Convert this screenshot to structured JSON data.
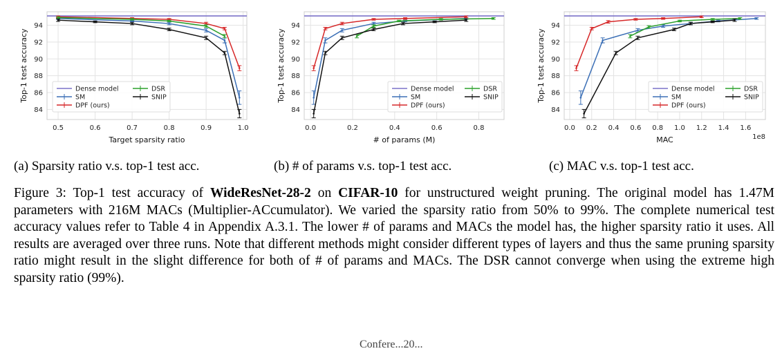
{
  "series_colors": {
    "Dense model": "#7b72c9",
    "SM": "#3b6fb6",
    "DPF (ours)": "#d62728",
    "DSR": "#2ca02c",
    "SNIP": "#111111"
  },
  "legend": [
    "Dense model",
    "SM",
    "DPF (ours)",
    "DSR",
    "SNIP"
  ],
  "chart_data": [
    {
      "type": "line",
      "xlabel": "Target sparsity ratio",
      "ylabel": "Top-1 test accuracy",
      "xlim": [
        0.47,
        1.01
      ],
      "ylim": [
        82.8,
        95.6
      ],
      "xticks": [
        0.5,
        0.6,
        0.7,
        0.8,
        0.9,
        1.0
      ],
      "xticklabels": [
        "0.5",
        "0.6",
        "0.7",
        "0.8",
        "0.9",
        "1.0"
      ],
      "yticks": [
        84,
        86,
        88,
        90,
        92,
        94
      ],
      "grid": true,
      "legend_position": "lower-left",
      "series": [
        {
          "name": "Dense model",
          "x": [
            0.47,
            1.01
          ],
          "y": [
            95.1,
            95.1
          ],
          "err": [
            0,
            0
          ]
        },
        {
          "name": "SM",
          "x": [
            0.5,
            0.7,
            0.8,
            0.9,
            0.95,
            0.99
          ],
          "y": [
            94.8,
            94.5,
            94.2,
            93.4,
            92.2,
            85.4
          ],
          "err": [
            0.1,
            0.1,
            0.15,
            0.2,
            0.3,
            0.8
          ]
        },
        {
          "name": "DPF (ours)",
          "x": [
            0.5,
            0.7,
            0.8,
            0.9,
            0.95,
            0.99
          ],
          "y": [
            95.0,
            94.8,
            94.7,
            94.2,
            93.6,
            88.9
          ],
          "err": [
            0.1,
            0.1,
            0.1,
            0.15,
            0.15,
            0.3
          ]
        },
        {
          "name": "DSR",
          "x": [
            0.5,
            0.7,
            0.8,
            0.9,
            0.95
          ],
          "y": [
            94.9,
            94.7,
            94.5,
            93.9,
            92.7
          ],
          "err": [
            0.1,
            0.1,
            0.1,
            0.15,
            0.2
          ]
        },
        {
          "name": "SNIP",
          "x": [
            0.5,
            0.6,
            0.7,
            0.8,
            0.9,
            0.95,
            0.99
          ],
          "y": [
            94.6,
            94.4,
            94.2,
            93.5,
            92.5,
            90.7,
            83.5
          ],
          "err": [
            0.15,
            0.1,
            0.15,
            0.15,
            0.2,
            0.2,
            0.5
          ]
        }
      ]
    },
    {
      "type": "line",
      "xlabel": "# of params (M)",
      "ylabel": "Top-1 test accuracy",
      "xlim": [
        -0.03,
        0.92
      ],
      "ylim": [
        82.8,
        95.6
      ],
      "xticks": [
        0.0,
        0.2,
        0.4,
        0.6,
        0.8
      ],
      "xticklabels": [
        "0.0",
        "0.2",
        "0.4",
        "0.6",
        "0.8"
      ],
      "yticks": [
        84,
        86,
        88,
        90,
        92,
        94
      ],
      "grid": true,
      "legend_position": "lower-right",
      "series": [
        {
          "name": "Dense model",
          "x": [
            -0.03,
            0.92
          ],
          "y": [
            95.1,
            95.1
          ],
          "err": [
            0,
            0
          ]
        },
        {
          "name": "SM",
          "x": [
            0.015,
            0.07,
            0.15,
            0.3,
            0.45,
            0.74
          ],
          "y": [
            85.4,
            92.2,
            93.4,
            94.2,
            94.5,
            94.8
          ],
          "err": [
            0.8,
            0.3,
            0.2,
            0.15,
            0.1,
            0.1
          ]
        },
        {
          "name": "DPF (ours)",
          "x": [
            0.015,
            0.07,
            0.15,
            0.3,
            0.45,
            0.74
          ],
          "y": [
            88.9,
            93.6,
            94.2,
            94.7,
            94.8,
            95.0
          ],
          "err": [
            0.3,
            0.15,
            0.15,
            0.1,
            0.1,
            0.1
          ]
        },
        {
          "name": "DSR",
          "x": [
            0.22,
            0.3,
            0.42,
            0.62,
            0.87
          ],
          "y": [
            92.7,
            93.9,
            94.5,
            94.7,
            94.8
          ],
          "err": [
            0.2,
            0.15,
            0.1,
            0.1,
            0.1
          ]
        },
        {
          "name": "SNIP",
          "x": [
            0.015,
            0.07,
            0.15,
            0.3,
            0.44,
            0.59,
            0.74
          ],
          "y": [
            83.5,
            90.7,
            92.5,
            93.5,
            94.2,
            94.4,
            94.6
          ],
          "err": [
            0.5,
            0.2,
            0.2,
            0.15,
            0.15,
            0.1,
            0.15
          ]
        }
      ]
    },
    {
      "type": "line",
      "xlabel": "MAC",
      "ylabel": "Top-1 test accuracy",
      "x_multiplier_label": "1e8",
      "xlim": [
        -0.05,
        1.78
      ],
      "ylim": [
        82.8,
        95.6
      ],
      "xticks": [
        0.0,
        0.2,
        0.4,
        0.6,
        0.8,
        1.0,
        1.2,
        1.4,
        1.6
      ],
      "xticklabels": [
        "0.0",
        "0.2",
        "0.4",
        "0.6",
        "0.8",
        "1.0",
        "1.2",
        "1.4",
        "1.6"
      ],
      "yticks": [
        84,
        86,
        88,
        90,
        92,
        94
      ],
      "grid": true,
      "legend_position": "lower-right",
      "series": [
        {
          "name": "Dense model",
          "x": [
            -0.05,
            1.78
          ],
          "y": [
            95.1,
            95.1
          ],
          "err": [
            0,
            0
          ]
        },
        {
          "name": "SM",
          "x": [
            0.1,
            0.3,
            0.62,
            0.85,
            1.1,
            1.35,
            1.7
          ],
          "y": [
            85.4,
            92.2,
            93.4,
            93.9,
            94.2,
            94.5,
            94.8
          ],
          "err": [
            0.8,
            0.3,
            0.2,
            0.15,
            0.15,
            0.1,
            0.1
          ]
        },
        {
          "name": "DPF (ours)",
          "x": [
            0.06,
            0.2,
            0.35,
            0.6,
            0.85,
            1.2
          ],
          "y": [
            88.9,
            93.6,
            94.4,
            94.7,
            94.8,
            95.0
          ],
          "err": [
            0.3,
            0.15,
            0.15,
            0.1,
            0.1,
            0.1
          ]
        },
        {
          "name": "DSR",
          "x": [
            0.55,
            0.72,
            1.0,
            1.3,
            1.55
          ],
          "y": [
            92.7,
            93.8,
            94.5,
            94.7,
            94.8
          ],
          "err": [
            0.2,
            0.15,
            0.1,
            0.1,
            0.1
          ]
        },
        {
          "name": "SNIP",
          "x": [
            0.13,
            0.42,
            0.62,
            0.95,
            1.1,
            1.3,
            1.5
          ],
          "y": [
            83.5,
            90.7,
            92.5,
            93.5,
            94.2,
            94.4,
            94.6
          ],
          "err": [
            0.5,
            0.2,
            0.2,
            0.15,
            0.15,
            0.1,
            0.15
          ]
        }
      ]
    }
  ],
  "subcaptions": [
    "(a)  Sparsity ratio v.s. top-1 test acc.",
    "(b)  # of params v.s. top-1 test acc.",
    "(c)  MAC v.s. top-1 test acc."
  ],
  "caption": {
    "prefix": "Figure 3: Top-1 test accuracy of ",
    "model": "WideResNet-28-2",
    "on": " on ",
    "dataset": "CIFAR-10",
    "rest": " for unstructured weight pruning. The original model has 1.47M parameters with 216M MACs (Multiplier-ACcumulator). We varied the sparsity ratio from 50% to 99%. The complete numerical test accuracy values refer to Table 4 in Appendix A.3.1. The lower # of params and MACs the model has, the higher sparsity ratio it uses. All results are averaged over three runs. Note that different methods might consider different types of layers and thus the same pruning sparsity ratio might result in the slight difference for both of # of params and MACs. The DSR cannot converge when using the extreme high sparsity ratio (99%)."
  },
  "footer_text": "Confere...20..."
}
